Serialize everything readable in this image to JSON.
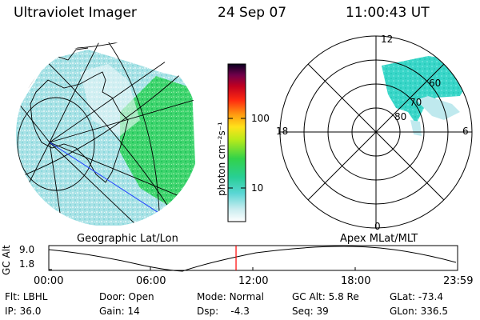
{
  "header": {
    "instrument": "Ultraviolet Imager",
    "date": "24 Sep 07",
    "time": "11:00:43 UT"
  },
  "geo_panel": {
    "caption": "Geographic Lat/Lon"
  },
  "polar_panel": {
    "caption": "Apex MLat/MLT",
    "mlt_labels": {
      "top": "12",
      "left": "18",
      "right": "6",
      "bottom": "0"
    },
    "lat_labels": [
      "60",
      "70",
      "80"
    ]
  },
  "colorbar": {
    "unit_label": "photon cm⁻²s⁻¹",
    "ticks": [
      "100",
      "10"
    ]
  },
  "timeline": {
    "axis_label": "GC Alt",
    "ylabels": [
      "9.0",
      "1.8"
    ],
    "xlabels": [
      "00:00",
      "06:00",
      "12:00",
      "18:00",
      "23:59"
    ],
    "marker_color": "#ff0000",
    "current_fraction": 0.458
  },
  "info": {
    "filter_label": "Flt:",
    "filter_value": "LBHL",
    "ip_label": "IP:",
    "ip_value": "36.0",
    "door_label": "Door:",
    "door_value": "Open",
    "gain_label": "Gain:",
    "gain_value": "14",
    "mode_label": "Mode:",
    "mode_value": "Normal",
    "dsp_label": "Dsp:",
    "dsp_value": "-4.3",
    "gcalt_label": "GC Alt:",
    "gcalt_value": "5.8 Re",
    "seq_label": "Seq:",
    "seq_value": "39",
    "glat_label": "GLat:",
    "glat_value": "-73.4",
    "glon_label": "GLon:",
    "glon_value": "336.5"
  },
  "colors": {
    "aurora_cyan": "#3ad6c8",
    "low_cyan": "#b8e6ea",
    "land_green": "#34d86a"
  }
}
